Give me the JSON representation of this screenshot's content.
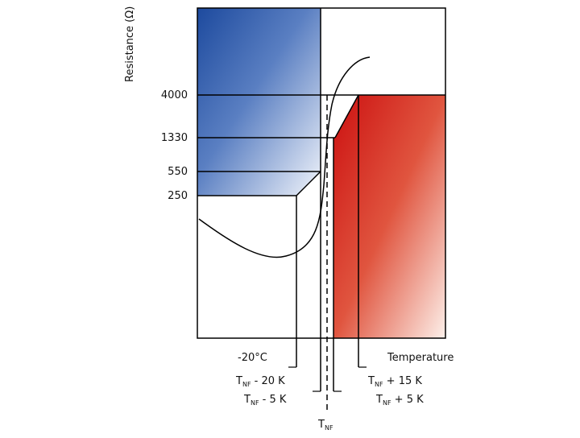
{
  "diagram": {
    "y_axis_label": "Resistance (Ω)",
    "x_axis_label": "Temperature",
    "resistance_levels": [
      {
        "value": "4000"
      },
      {
        "value": "1330"
      },
      {
        "value": "550"
      },
      {
        "value": "250"
      }
    ],
    "temperature_markers": {
      "minus20": "-20°C",
      "tnf_minus20": {
        "main": "T",
        "sub": "NF",
        "rest": " - 20 K"
      },
      "tnf_minus5": {
        "main": "T",
        "sub": "NF",
        "rest": " - 5 K"
      },
      "tnf": {
        "main": "T",
        "sub": "NF"
      },
      "tnf_plus5": {
        "main": "T",
        "sub": "NF",
        "rest": " + 5 K"
      },
      "tnf_plus15": {
        "main": "T",
        "sub": "NF",
        "rest": " + 15 K"
      }
    },
    "colors": {
      "cold_region": "#2f5aa8",
      "hot_region": "#d42020",
      "frame": "#000000"
    }
  }
}
